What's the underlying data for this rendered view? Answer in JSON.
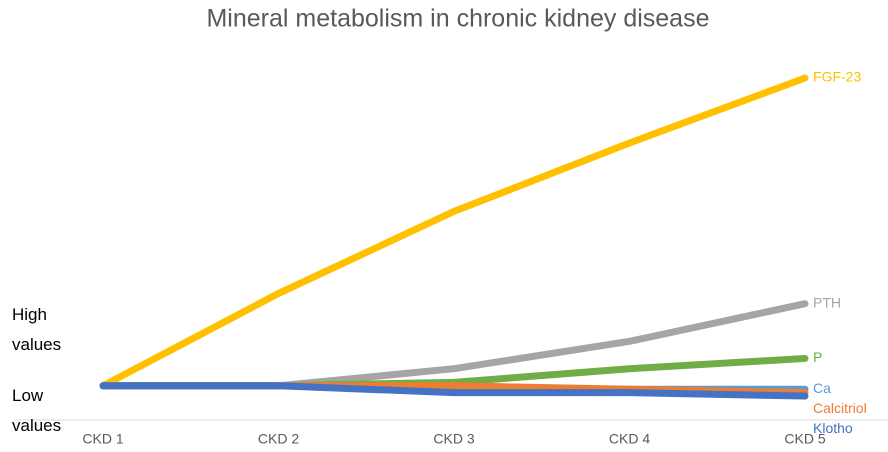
{
  "chart_data": {
    "type": "line",
    "title": "Mineral metabolism in chronic kidney disease",
    "y_high_label": "High values",
    "y_low_label": "Low values",
    "categories": [
      "CKD 1",
      "CKD 2",
      "CKD 3",
      "CKD 4",
      "CKD 5"
    ],
    "ylim": [
      0,
      100
    ],
    "series": [
      {
        "name": "FGF-23",
        "color": "#FFC000",
        "values": [
          10,
          37,
          61,
          81,
          100
        ]
      },
      {
        "name": "PTH",
        "color": "#A5A5A5",
        "values": [
          10,
          10,
          15,
          23,
          34
        ]
      },
      {
        "name": "P",
        "color": "#70AD47",
        "values": [
          10,
          10,
          11,
          15,
          18
        ]
      },
      {
        "name": "Ca",
        "color": "#5B9BD5",
        "values": [
          10,
          10,
          9,
          9,
          9
        ]
      },
      {
        "name": "Calcitriol",
        "color": "#ED7D31",
        "values": [
          10,
          10,
          10,
          9,
          8
        ]
      },
      {
        "name": "Klotho",
        "color": "#4472C4",
        "values": [
          10,
          10,
          8,
          8,
          7
        ]
      }
    ]
  }
}
